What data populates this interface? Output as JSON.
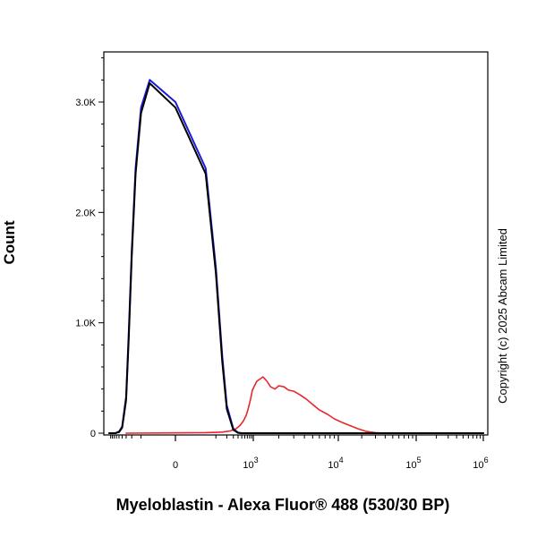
{
  "chart_data": {
    "type": "line",
    "xlabel": "Myeloblastin - Alexa Fluor® 488 (530/30 BP)",
    "ylabel": "Count",
    "annotation": "Copyright (c) 2025 Abcam Limited",
    "x_scale": "biexponential",
    "xlim": [
      -1000,
      1000000
    ],
    "ylim": [
      0,
      3500
    ],
    "x_ticks": [
      {
        "value": 0,
        "base": "0",
        "exp": ""
      },
      {
        "value": 1000,
        "base": "10",
        "exp": "3"
      },
      {
        "value": 10000,
        "base": "10",
        "exp": "4"
      },
      {
        "value": 100000,
        "base": "10",
        "exp": "5"
      },
      {
        "value": 1000000,
        "base": "10",
        "exp": "6"
      }
    ],
    "y_ticks": [
      {
        "value": 0,
        "label": "0"
      },
      {
        "value": 1000,
        "label": "1.0K"
      },
      {
        "value": 2000,
        "label": "2.0K"
      },
      {
        "value": 3000,
        "label": "3.0K"
      }
    ],
    "grid": false,
    "series": [
      {
        "color": "#e8262b",
        "x": [
          -300,
          50,
          150,
          250,
          350,
          450,
          550,
          650,
          750,
          850,
          950,
          1100,
          1300,
          1450,
          1600,
          1800,
          2000,
          2300,
          2600,
          3000,
          3500,
          4200,
          5000,
          6000,
          7500,
          9000,
          11000,
          14000,
          18000,
          23000,
          30000,
          40000,
          60000,
          1000000
        ],
        "y": [
          0,
          5,
          10,
          20,
          40,
          70,
          110,
          160,
          230,
          310,
          390,
          470,
          510,
          470,
          420,
          400,
          430,
          420,
          390,
          380,
          350,
          310,
          260,
          210,
          170,
          130,
          100,
          70,
          40,
          15,
          5,
          0,
          0,
          0
        ]
      },
      {
        "color": "#1a1adb",
        "x": [
          -1000,
          -650,
          -500,
          -400,
          -300,
          -250,
          -200,
          -150,
          -100,
          -50,
          0,
          50,
          100,
          150,
          200,
          300,
          400,
          500,
          1000000
        ],
        "y": [
          0,
          0,
          15,
          60,
          330,
          900,
          1650,
          2400,
          2950,
          3200,
          3000,
          2400,
          1500,
          700,
          250,
          40,
          5,
          0,
          0
        ]
      },
      {
        "color": "#000000",
        "x": [
          -1000,
          -650,
          -500,
          -400,
          -300,
          -250,
          -200,
          -150,
          -100,
          -50,
          0,
          50,
          100,
          150,
          200,
          300,
          400,
          500,
          1000000
        ],
        "y": [
          0,
          0,
          10,
          50,
          300,
          850,
          1600,
          2350,
          2900,
          3170,
          2950,
          2350,
          1450,
          650,
          220,
          30,
          3,
          0,
          0
        ]
      }
    ]
  }
}
